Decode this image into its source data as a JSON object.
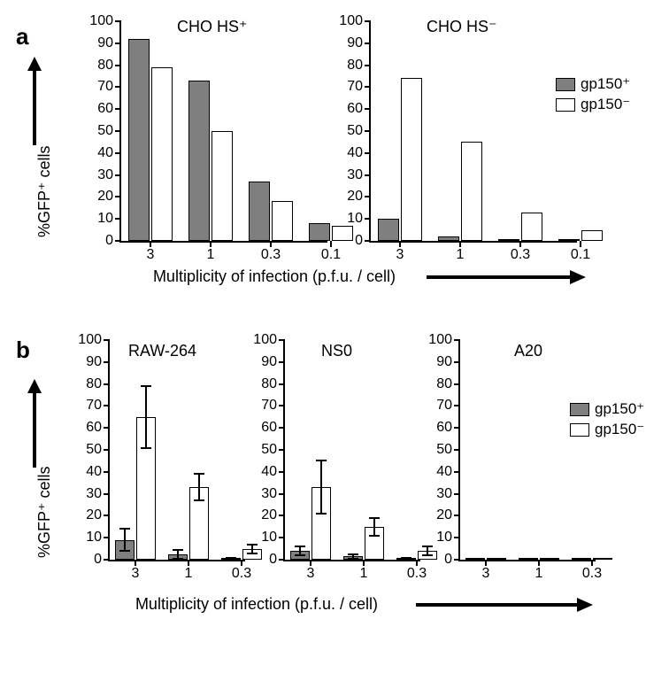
{
  "colors": {
    "filled": "#7f7f7f",
    "open": "#ffffff",
    "axis": "#000000",
    "background": "#ffffff"
  },
  "legend": {
    "items": [
      {
        "label": "gp150⁺",
        "fill": "#7f7f7f"
      },
      {
        "label": "gp150⁻",
        "fill": "#ffffff"
      }
    ]
  },
  "axes": {
    "y": {
      "min": 0,
      "max": 100,
      "step": 10,
      "label": "%GFP⁺ cells"
    },
    "x_label": "Multiplicity of infection (p.f.u. / cell)"
  },
  "panel_a": {
    "label": "a",
    "x_ticks": [
      "3",
      "1",
      "0.3",
      "0.1"
    ],
    "charts": [
      {
        "title": "CHO HS⁺",
        "data": [
          {
            "x": "3",
            "gp150p": 92,
            "gp150n": 79
          },
          {
            "x": "1",
            "gp150p": 73,
            "gp150n": 50
          },
          {
            "x": "0.3",
            "gp150p": 27,
            "gp150n": 18
          },
          {
            "x": "0.1",
            "gp150p": 8,
            "gp150n": 7
          }
        ]
      },
      {
        "title": "CHO HS⁻",
        "data": [
          {
            "x": "3",
            "gp150p": 10,
            "gp150n": 74
          },
          {
            "x": "1",
            "gp150p": 2,
            "gp150n": 45
          },
          {
            "x": "0.3",
            "gp150p": 0.5,
            "gp150n": 13
          },
          {
            "x": "0.1",
            "gp150p": 0.3,
            "gp150n": 5
          }
        ]
      }
    ]
  },
  "panel_b": {
    "label": "b",
    "x_ticks": [
      "3",
      "1",
      "0.3"
    ],
    "charts": [
      {
        "title": "RAW-264",
        "data": [
          {
            "x": "3",
            "gp150p": 9,
            "gp150p_err": 5,
            "gp150n": 65,
            "gp150n_err": 14
          },
          {
            "x": "1",
            "gp150p": 2.5,
            "gp150p_err": 2,
            "gp150n": 33,
            "gp150n_err": 6
          },
          {
            "x": "0.3",
            "gp150p": 0.5,
            "gp150p_err": 0.5,
            "gp150n": 5,
            "gp150n_err": 2
          }
        ]
      },
      {
        "title": "NS0",
        "data": [
          {
            "x": "3",
            "gp150p": 4,
            "gp150p_err": 2,
            "gp150n": 33,
            "gp150n_err": 12
          },
          {
            "x": "1",
            "gp150p": 1.5,
            "gp150p_err": 1,
            "gp150n": 15,
            "gp150n_err": 4
          },
          {
            "x": "0.3",
            "gp150p": 0.5,
            "gp150p_err": 0.5,
            "gp150n": 4,
            "gp150n_err": 2
          }
        ]
      },
      {
        "title": "A20",
        "data": [
          {
            "x": "3",
            "gp150p": 0.5,
            "gp150n": 1
          },
          {
            "x": "1",
            "gp150p": 0.3,
            "gp150n": 0.5
          },
          {
            "x": "0.3",
            "gp150p": 0.2,
            "gp150n": 0.3
          }
        ]
      }
    ]
  },
  "style": {
    "bar_width_a": 24,
    "bar_gap_a": 2,
    "group_gap_a": 18,
    "bar_width_b": 22,
    "bar_gap_b": 2,
    "group_gap_b": 14,
    "title_fontsize": 18,
    "tick_fontsize": 16,
    "axis_line_width": 2
  }
}
